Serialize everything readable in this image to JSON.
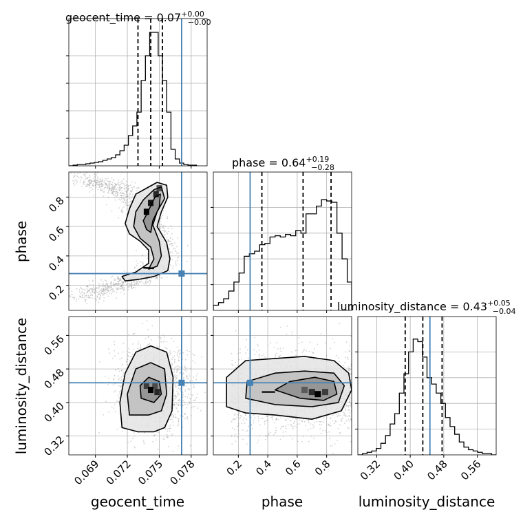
{
  "figure_type": "corner plot",
  "colors": {
    "hist": "#000000",
    "truth": "#4682b4",
    "grid": "#b0b0b0",
    "density_dark": "#000000",
    "scatter": "#9a9a9a"
  },
  "chart_data": [
    {
      "type": "bar",
      "panel": "geocent_time-1d",
      "title_main": "geocent_time = 0.07",
      "title_sup": "+0.00",
      "title_sub": "−0.00",
      "xlim": [
        0.0665,
        0.0795
      ],
      "ylim": [
        0,
        1.0
      ],
      "xticks": [
        0.069,
        0.072,
        0.075,
        0.078
      ],
      "xticklabels": [
        "0.069",
        "0.072",
        "0.075",
        "0.078"
      ],
      "quantiles": [
        0.073,
        0.0742,
        0.0753
      ],
      "truth": 0.0771,
      "bins": [
        0.0665,
        0.0669,
        0.0673,
        0.0677,
        0.0681,
        0.0685,
        0.0689,
        0.0693,
        0.0697,
        0.0701,
        0.0705,
        0.0709,
        0.0713,
        0.0717,
        0.0721,
        0.0725,
        0.0729,
        0.0733,
        0.0737,
        0.0741,
        0.0745,
        0.0749,
        0.0753,
        0.0757,
        0.0761,
        0.0765,
        0.0769,
        0.0773,
        0.0777,
        0.0781,
        0.0785
      ],
      "counts": [
        0.0,
        0.005,
        0.01,
        0.01,
        0.015,
        0.02,
        0.025,
        0.03,
        0.04,
        0.05,
        0.06,
        0.08,
        0.11,
        0.15,
        0.22,
        0.29,
        0.39,
        0.62,
        0.8,
        0.97,
        0.97,
        0.8,
        0.62,
        0.39,
        0.12,
        0.05,
        0.02,
        0.01,
        0.005,
        0.005
      ]
    },
    {
      "type": "bar",
      "panel": "phase-1d",
      "title_main": "phase = 0.64",
      "title_sup": "+0.19",
      "title_sub": "−0.28",
      "xlim": [
        0.03,
        0.97
      ],
      "ylim": [
        0,
        1.0
      ],
      "xticks": [
        0.2,
        0.4,
        0.6,
        0.8
      ],
      "xticklabels": [
        "0.2",
        "0.4",
        "0.6",
        "0.8"
      ],
      "quantiles": [
        0.36,
        0.64,
        0.83
      ],
      "truth": 0.28,
      "bins": [
        0.03,
        0.065,
        0.1,
        0.135,
        0.17,
        0.205,
        0.24,
        0.275,
        0.31,
        0.345,
        0.38,
        0.415,
        0.45,
        0.485,
        0.52,
        0.555,
        0.59,
        0.625,
        0.66,
        0.695,
        0.73,
        0.765,
        0.8,
        0.835,
        0.87,
        0.905,
        0.94,
        0.97
      ],
      "counts": [
        0.04,
        0.06,
        0.09,
        0.15,
        0.22,
        0.29,
        0.42,
        0.44,
        0.46,
        0.51,
        0.52,
        0.57,
        0.58,
        0.57,
        0.59,
        0.58,
        0.62,
        0.6,
        0.75,
        0.75,
        0.81,
        0.86,
        0.85,
        0.84,
        0.6,
        0.4,
        0.22
      ]
    },
    {
      "type": "bar",
      "panel": "luminosity_distance-1d",
      "title_main": "luminosity_distance = 0.43",
      "title_sup": "+0.05",
      "title_sub": "−0.04",
      "xlim": [
        0.275,
        0.605
      ],
      "ylim": [
        0,
        1.0
      ],
      "xticks": [
        0.32,
        0.4,
        0.48,
        0.56
      ],
      "xticklabels": [
        "0.32",
        "0.40",
        "0.48",
        "0.56"
      ],
      "quantiles": [
        0.388,
        0.43,
        0.476
      ],
      "truth": 0.447,
      "bins": [
        0.275,
        0.286,
        0.297,
        0.308,
        0.319,
        0.33,
        0.341,
        0.352,
        0.363,
        0.374,
        0.385,
        0.396,
        0.407,
        0.418,
        0.429,
        0.44,
        0.451,
        0.462,
        0.473,
        0.484,
        0.495,
        0.506,
        0.517,
        0.528,
        0.539,
        0.55,
        0.561,
        0.572,
        0.583,
        0.594,
        0.605
      ],
      "counts": [
        0.0,
        0.01,
        0.02,
        0.03,
        0.05,
        0.09,
        0.15,
        0.24,
        0.32,
        0.48,
        0.63,
        0.8,
        0.9,
        0.88,
        0.76,
        0.6,
        0.55,
        0.48,
        0.4,
        0.29,
        0.22,
        0.16,
        0.1,
        0.06,
        0.04,
        0.03,
        0.02,
        0.01,
        0.01,
        0.0
      ]
    },
    {
      "type": "scatter",
      "panel": "phase-vs-geocent_time",
      "xlim": [
        0.0665,
        0.0795
      ],
      "ylim": [
        0.03,
        0.97
      ],
      "xticks": [
        0.069,
        0.072,
        0.075,
        0.078
      ],
      "yticks": [
        0.2,
        0.4,
        0.6,
        0.8
      ],
      "yticklabels": [
        "0.2",
        "0.4",
        "0.6",
        "0.8"
      ],
      "truth": [
        0.0771,
        0.28
      ],
      "ridge": [
        [
          0.0675,
          0.93
        ],
        [
          0.069,
          0.9
        ],
        [
          0.0705,
          0.87
        ],
        [
          0.0718,
          0.84
        ],
        [
          0.0725,
          0.76
        ],
        [
          0.0738,
          0.67
        ],
        [
          0.0745,
          0.58
        ],
        [
          0.0752,
          0.49
        ],
        [
          0.075,
          0.38
        ],
        [
          0.0745,
          0.3
        ],
        [
          0.0735,
          0.26
        ],
        [
          0.072,
          0.22
        ],
        [
          0.0705,
          0.19
        ],
        [
          0.069,
          0.15
        ],
        [
          0.0675,
          0.12
        ]
      ],
      "contours": [
        [
          [
            0.0728,
            0.82
          ],
          [
            0.0738,
            0.86
          ],
          [
            0.0748,
            0.9
          ],
          [
            0.0757,
            0.88
          ],
          [
            0.0758,
            0.8
          ],
          [
            0.0752,
            0.7
          ],
          [
            0.0748,
            0.6
          ],
          [
            0.0757,
            0.49
          ],
          [
            0.076,
            0.38
          ],
          [
            0.0758,
            0.3
          ],
          [
            0.0745,
            0.26
          ],
          [
            0.073,
            0.24
          ],
          [
            0.0718,
            0.23
          ],
          [
            0.0715,
            0.26
          ],
          [
            0.0728,
            0.29
          ],
          [
            0.074,
            0.35
          ],
          [
            0.074,
            0.44
          ],
          [
            0.0732,
            0.5
          ],
          [
            0.0722,
            0.55
          ],
          [
            0.0718,
            0.62
          ],
          [
            0.0722,
            0.72
          ],
          [
            0.0728,
            0.82
          ]
        ],
        [
          [
            0.0735,
            0.78
          ],
          [
            0.0745,
            0.85
          ],
          [
            0.0752,
            0.87
          ],
          [
            0.0755,
            0.79
          ],
          [
            0.0748,
            0.7
          ],
          [
            0.0744,
            0.61
          ],
          [
            0.075,
            0.5
          ],
          [
            0.0752,
            0.4
          ],
          [
            0.0748,
            0.33
          ],
          [
            0.074,
            0.31
          ],
          [
            0.0745,
            0.38
          ],
          [
            0.0742,
            0.46
          ],
          [
            0.0732,
            0.52
          ],
          [
            0.0726,
            0.6
          ],
          [
            0.0728,
            0.7
          ],
          [
            0.0735,
            0.78
          ]
        ],
        [
          [
            0.0738,
            0.68
          ],
          [
            0.0746,
            0.8
          ],
          [
            0.0751,
            0.82
          ],
          [
            0.075,
            0.73
          ],
          [
            0.0744,
            0.64
          ],
          [
            0.0742,
            0.56
          ],
          [
            0.0738,
            0.58
          ],
          [
            0.0735,
            0.64
          ],
          [
            0.0738,
            0.68
          ]
        ]
      ]
    },
    {
      "type": "scatter",
      "panel": "luminosity_distance-vs-geocent_time",
      "xlim": [
        0.0665,
        0.0795
      ],
      "ylim": [
        0.275,
        0.605
      ],
      "xticks": [
        0.069,
        0.072,
        0.075,
        0.078
      ],
      "xticklabels": [
        "0.069",
        "0.072",
        "0.075",
        "0.078"
      ],
      "yticks": [
        0.32,
        0.4,
        0.48,
        0.56
      ],
      "yticklabels": [
        "0.32",
        "0.40",
        "0.48",
        "0.56"
      ],
      "truth": [
        0.0771,
        0.447
      ],
      "center": [
        0.0744,
        0.432
      ],
      "contours": [
        [
          [
            0.0715,
            0.34
          ],
          [
            0.0713,
            0.4
          ],
          [
            0.0718,
            0.47
          ],
          [
            0.0728,
            0.52
          ],
          [
            0.0742,
            0.535
          ],
          [
            0.0757,
            0.52
          ],
          [
            0.0763,
            0.46
          ],
          [
            0.0762,
            0.38
          ],
          [
            0.0755,
            0.34
          ],
          [
            0.0745,
            0.33
          ],
          [
            0.073,
            0.33
          ],
          [
            0.0715,
            0.34
          ]
        ],
        [
          [
            0.0722,
            0.37
          ],
          [
            0.072,
            0.42
          ],
          [
            0.0728,
            0.48
          ],
          [
            0.0742,
            0.495
          ],
          [
            0.0755,
            0.48
          ],
          [
            0.0757,
            0.42
          ],
          [
            0.0752,
            0.38
          ],
          [
            0.074,
            0.37
          ],
          [
            0.0722,
            0.37
          ]
        ],
        [
          [
            0.0733,
            0.41
          ],
          [
            0.0732,
            0.44
          ],
          [
            0.074,
            0.46
          ],
          [
            0.075,
            0.45
          ],
          [
            0.0752,
            0.42
          ],
          [
            0.0745,
            0.4
          ],
          [
            0.0733,
            0.41
          ]
        ]
      ]
    },
    {
      "type": "scatter",
      "panel": "luminosity_distance-vs-phase",
      "xlim": [
        0.03,
        0.97
      ],
      "ylim": [
        0.275,
        0.605
      ],
      "xticks": [
        0.2,
        0.4,
        0.6,
        0.8
      ],
      "xticklabels": [
        "0.2",
        "0.4",
        "0.6",
        "0.8"
      ],
      "truth": [
        0.28,
        0.447
      ],
      "center": [
        0.74,
        0.425
      ],
      "contours": [
        [
          [
            0.12,
            0.39
          ],
          [
            0.12,
            0.46
          ],
          [
            0.25,
            0.5
          ],
          [
            0.45,
            0.505
          ],
          [
            0.65,
            0.51
          ],
          [
            0.85,
            0.5
          ],
          [
            0.95,
            0.47
          ],
          [
            0.97,
            0.43
          ],
          [
            0.9,
            0.38
          ],
          [
            0.7,
            0.36
          ],
          [
            0.45,
            0.37
          ],
          [
            0.25,
            0.375
          ],
          [
            0.12,
            0.39
          ]
        ],
        [
          [
            0.25,
            0.41
          ],
          [
            0.26,
            0.45
          ],
          [
            0.45,
            0.47
          ],
          [
            0.65,
            0.475
          ],
          [
            0.85,
            0.47
          ],
          [
            0.92,
            0.44
          ],
          [
            0.88,
            0.4
          ],
          [
            0.7,
            0.39
          ],
          [
            0.45,
            0.395
          ],
          [
            0.25,
            0.41
          ]
        ],
        [
          [
            0.45,
            0.43
          ],
          [
            0.55,
            0.45
          ],
          [
            0.72,
            0.46
          ],
          [
            0.85,
            0.45
          ],
          [
            0.87,
            0.42
          ],
          [
            0.78,
            0.405
          ],
          [
            0.62,
            0.41
          ],
          [
            0.45,
            0.43
          ]
        ]
      ]
    }
  ],
  "axis_labels": {
    "x_geocent_time": "geocent_time",
    "x_phase": "phase",
    "x_luminosity_distance": "luminosity_distance",
    "y_phase": "phase",
    "y_luminosity_distance": "luminosity_distance"
  }
}
